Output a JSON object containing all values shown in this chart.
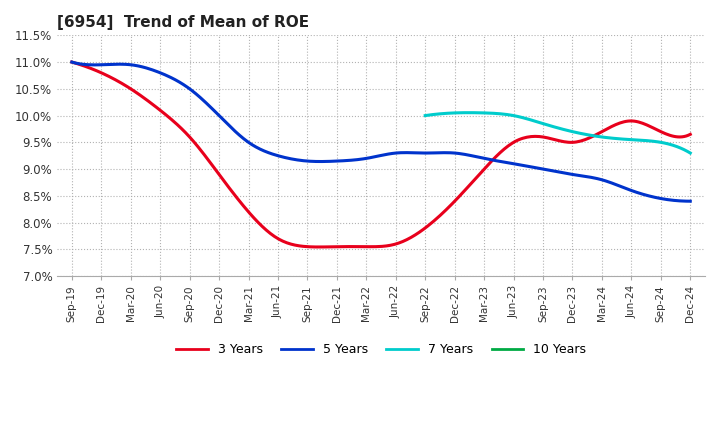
{
  "title": "[6954]  Trend of Mean of ROE",
  "ylim": [
    0.07,
    0.115
  ],
  "yticks": [
    0.07,
    0.075,
    0.08,
    0.085,
    0.09,
    0.095,
    0.1,
    0.105,
    0.11,
    0.115
  ],
  "x_labels": [
    "Sep-19",
    "Dec-19",
    "Mar-20",
    "Jun-20",
    "Sep-20",
    "Dec-20",
    "Mar-21",
    "Jun-21",
    "Sep-21",
    "Dec-21",
    "Mar-22",
    "Jun-22",
    "Sep-22",
    "Dec-22",
    "Mar-23",
    "Jun-23",
    "Sep-23",
    "Dec-23",
    "Mar-24",
    "Jun-24",
    "Sep-24",
    "Dec-24"
  ],
  "series": {
    "3 Years": {
      "color": "#e8001c",
      "values": [
        0.11,
        0.108,
        0.105,
        0.101,
        0.096,
        0.089,
        0.082,
        0.077,
        0.0755,
        0.0755,
        0.0755,
        0.076,
        0.079,
        0.084,
        0.09,
        0.095,
        0.096,
        0.095,
        0.097,
        0.099,
        0.097,
        0.0965
      ]
    },
    "5 Years": {
      "color": "#0033cc",
      "values": [
        0.11,
        0.1095,
        0.1095,
        0.108,
        0.105,
        0.1,
        0.095,
        0.0925,
        0.0915,
        0.0915,
        0.092,
        0.093,
        0.093,
        0.093,
        0.092,
        0.091,
        0.09,
        0.089,
        0.088,
        0.086,
        0.0845,
        0.084
      ]
    },
    "7 Years": {
      "color": "#00cccc",
      "values": [
        null,
        null,
        null,
        null,
        null,
        null,
        null,
        null,
        null,
        null,
        null,
        null,
        0.1,
        0.1005,
        0.1005,
        0.1,
        0.0985,
        0.097,
        0.096,
        0.0955,
        0.095,
        0.093
      ]
    },
    "10 Years": {
      "color": "#00aa44",
      "values": [
        null,
        null,
        null,
        null,
        null,
        null,
        null,
        null,
        null,
        null,
        null,
        null,
        null,
        null,
        null,
        null,
        null,
        null,
        null,
        null,
        null,
        null
      ]
    }
  },
  "legend_order": [
    "3 Years",
    "5 Years",
    "7 Years",
    "10 Years"
  ],
  "background_color": "#ffffff",
  "grid_color": "#aaaaaa"
}
